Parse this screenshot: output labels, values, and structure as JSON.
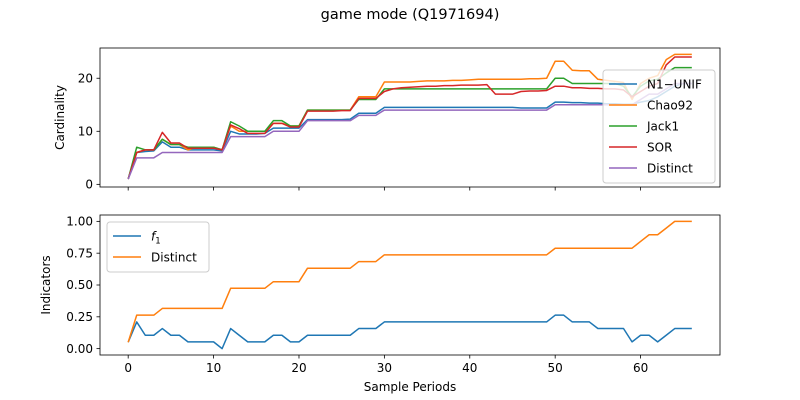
{
  "figure": {
    "title": "game mode (Q1971694)"
  },
  "colors": {
    "blue": "#1f77b4",
    "orange": "#ff7f0e",
    "green": "#2ca02c",
    "red": "#d62728",
    "purple": "#9467bd"
  },
  "chart_data": [
    {
      "type": "line",
      "title": "game mode (Q1971694)",
      "xlabel": "",
      "ylabel": "Cardinality",
      "xlim": [
        -3.3,
        69.3
      ],
      "ylim": [
        -0.5,
        25.7
      ],
      "xticks": [
        0,
        10,
        20,
        30,
        40,
        50,
        60
      ],
      "xtick_labels_visible": false,
      "yticks": [
        0,
        10,
        20
      ],
      "ytick_labels": [
        "0",
        "10",
        "20"
      ],
      "legend": "right",
      "grid": false,
      "x": [
        0,
        1,
        2,
        3,
        4,
        5,
        6,
        7,
        8,
        9,
        10,
        11,
        12,
        13,
        14,
        15,
        16,
        17,
        18,
        19,
        20,
        21,
        22,
        23,
        24,
        25,
        26,
        27,
        28,
        29,
        30,
        31,
        32,
        33,
        34,
        35,
        36,
        37,
        38,
        39,
        40,
        41,
        42,
        43,
        44,
        45,
        46,
        47,
        48,
        49,
        50,
        51,
        52,
        53,
        54,
        55,
        56,
        57,
        58,
        59,
        60,
        61,
        62,
        63,
        64,
        65,
        66
      ],
      "series": [
        {
          "name": "N1−UNIF",
          "color": "#1f77b4",
          "values": [
            1.0,
            6.0,
            6.2,
            6.3,
            8.0,
            7.0,
            7.0,
            6.5,
            6.5,
            6.5,
            6.5,
            6.3,
            10.0,
            9.5,
            9.5,
            9.5,
            9.6,
            10.6,
            10.6,
            10.6,
            10.6,
            12.2,
            12.2,
            12.2,
            12.2,
            12.2,
            12.3,
            13.4,
            13.4,
            13.4,
            14.5,
            14.5,
            14.5,
            14.5,
            14.5,
            14.5,
            14.5,
            14.5,
            14.5,
            14.5,
            14.5,
            14.5,
            14.5,
            14.5,
            14.5,
            14.5,
            14.4,
            14.4,
            14.4,
            14.4,
            15.5,
            15.5,
            15.4,
            15.4,
            15.3,
            15.3,
            15.2,
            15.2,
            15.1,
            15.1,
            15.5,
            15.8,
            16.5,
            17.5,
            18.5,
            19.0,
            19.0
          ]
        },
        {
          "name": "Chao92",
          "color": "#ff7f0e",
          "values": [
            1.0,
            6.0,
            6.5,
            6.5,
            8.5,
            7.5,
            7.5,
            6.5,
            7.0,
            7.0,
            7.0,
            6.5,
            11.0,
            10.0,
            10.0,
            10.0,
            10.0,
            11.5,
            11.5,
            11.0,
            11.0,
            14.0,
            14.0,
            14.0,
            14.0,
            14.0,
            14.0,
            16.5,
            16.5,
            16.5,
            19.3,
            19.3,
            19.3,
            19.3,
            19.4,
            19.5,
            19.5,
            19.5,
            19.6,
            19.6,
            19.7,
            19.8,
            19.8,
            19.8,
            19.8,
            19.8,
            19.8,
            19.9,
            19.9,
            20.0,
            23.2,
            23.2,
            21.5,
            21.4,
            21.4,
            19.8,
            19.6,
            19.4,
            19.2,
            16.0,
            19.0,
            20.0,
            20.5,
            23.5,
            24.5,
            24.5,
            24.5
          ]
        },
        {
          "name": "Jack1",
          "color": "#2ca02c",
          "values": [
            1.0,
            7.0,
            6.5,
            6.5,
            8.5,
            7.5,
            7.5,
            7.0,
            7.0,
            7.0,
            7.0,
            6.5,
            11.8,
            11.0,
            10.0,
            10.0,
            10.0,
            12.0,
            12.0,
            11.0,
            11.0,
            14.0,
            14.0,
            14.0,
            14.0,
            14.0,
            14.0,
            16.0,
            16.0,
            16.0,
            18.0,
            18.0,
            18.0,
            18.0,
            18.0,
            18.0,
            18.0,
            18.0,
            18.0,
            18.0,
            18.0,
            18.0,
            18.0,
            18.0,
            18.0,
            18.0,
            18.0,
            18.0,
            18.0,
            18.0,
            20.0,
            20.0,
            19.0,
            19.0,
            19.0,
            19.0,
            19.0,
            19.0,
            18.5,
            16.5,
            18.5,
            19.5,
            19.8,
            21.0,
            22.0,
            22.0,
            22.0
          ]
        },
        {
          "name": "SOR",
          "color": "#d62728",
          "values": [
            1.0,
            6.0,
            6.5,
            6.5,
            9.8,
            7.8,
            7.8,
            6.8,
            6.8,
            6.8,
            6.8,
            6.5,
            11.2,
            10.5,
            9.6,
            9.6,
            9.6,
            11.5,
            11.5,
            10.8,
            10.8,
            13.8,
            13.8,
            13.8,
            13.8,
            13.9,
            13.9,
            16.2,
            16.2,
            16.2,
            17.5,
            18.0,
            18.2,
            18.3,
            18.4,
            18.5,
            18.5,
            18.6,
            18.6,
            18.7,
            18.7,
            18.7,
            18.8,
            17.0,
            17.0,
            17.0,
            17.5,
            17.6,
            17.6,
            17.7,
            18.5,
            18.5,
            18.2,
            18.2,
            18.1,
            18.1,
            18.0,
            18.0,
            17.8,
            16.5,
            17.5,
            18.5,
            19.0,
            22.5,
            24.0,
            24.0,
            24.0
          ]
        },
        {
          "name": "Distinct",
          "color": "#9467bd",
          "values": [
            1.0,
            5.0,
            5.0,
            5.0,
            6.0,
            6.0,
            6.0,
            6.0,
            6.0,
            6.0,
            6.0,
            6.0,
            9.0,
            9.0,
            9.0,
            9.0,
            9.0,
            10.0,
            10.0,
            10.0,
            10.0,
            12.0,
            12.0,
            12.0,
            12.0,
            12.0,
            12.0,
            13.0,
            13.0,
            13.0,
            14.0,
            14.0,
            14.0,
            14.0,
            14.0,
            14.0,
            14.0,
            14.0,
            14.0,
            14.0,
            14.0,
            14.0,
            14.0,
            14.0,
            14.0,
            14.0,
            14.0,
            14.0,
            14.0,
            14.0,
            15.0,
            15.0,
            15.0,
            15.0,
            15.0,
            15.0,
            15.0,
            15.0,
            15.0,
            15.0,
            16.0,
            17.0,
            17.0,
            18.0,
            19.0,
            19.0,
            19.0
          ]
        }
      ]
    },
    {
      "type": "line",
      "title": "",
      "xlabel": "Sample Periods",
      "ylabel": "Indicators",
      "xlim": [
        -3.3,
        69.3
      ],
      "ylim": [
        -0.05,
        1.05
      ],
      "xticks": [
        0,
        10,
        20,
        30,
        40,
        50,
        60
      ],
      "xtick_labels": [
        "0",
        "10",
        "20",
        "30",
        "40",
        "50",
        "60"
      ],
      "yticks": [
        0,
        0.25,
        0.5,
        0.75,
        1.0
      ],
      "ytick_labels": [
        "0.00",
        "0.25",
        "0.50",
        "0.75",
        "1.00"
      ],
      "legend": "top-left",
      "grid": false,
      "x": [
        0,
        1,
        2,
        3,
        4,
        5,
        6,
        7,
        8,
        9,
        10,
        11,
        12,
        13,
        14,
        15,
        16,
        17,
        18,
        19,
        20,
        21,
        22,
        23,
        24,
        25,
        26,
        27,
        28,
        29,
        30,
        31,
        32,
        33,
        34,
        35,
        36,
        37,
        38,
        39,
        40,
        41,
        42,
        43,
        44,
        45,
        46,
        47,
        48,
        49,
        50,
        51,
        52,
        53,
        54,
        55,
        56,
        57,
        58,
        59,
        60,
        61,
        62,
        63,
        64,
        65,
        66
      ],
      "series": [
        {
          "name": "f1",
          "color": "#1f77b4",
          "values": [
            0.05,
            0.21,
            0.105,
            0.105,
            0.158,
            0.105,
            0.105,
            0.053,
            0.053,
            0.053,
            0.053,
            0.0,
            0.158,
            0.105,
            0.053,
            0.053,
            0.053,
            0.105,
            0.105,
            0.053,
            0.053,
            0.105,
            0.105,
            0.105,
            0.105,
            0.105,
            0.105,
            0.158,
            0.158,
            0.158,
            0.21,
            0.21,
            0.21,
            0.21,
            0.21,
            0.21,
            0.21,
            0.21,
            0.21,
            0.21,
            0.21,
            0.21,
            0.21,
            0.21,
            0.21,
            0.21,
            0.21,
            0.21,
            0.21,
            0.21,
            0.263,
            0.263,
            0.21,
            0.21,
            0.21,
            0.158,
            0.158,
            0.158,
            0.158,
            0.053,
            0.105,
            0.105,
            0.053,
            0.105,
            0.158,
            0.158,
            0.158
          ]
        },
        {
          "name": "Distinct",
          "color": "#ff7f0e",
          "values": [
            0.05,
            0.263,
            0.263,
            0.263,
            0.316,
            0.316,
            0.316,
            0.316,
            0.316,
            0.316,
            0.316,
            0.316,
            0.474,
            0.474,
            0.474,
            0.474,
            0.474,
            0.526,
            0.526,
            0.526,
            0.526,
            0.632,
            0.632,
            0.632,
            0.632,
            0.632,
            0.632,
            0.684,
            0.684,
            0.684,
            0.737,
            0.737,
            0.737,
            0.737,
            0.737,
            0.737,
            0.737,
            0.737,
            0.737,
            0.737,
            0.737,
            0.737,
            0.737,
            0.737,
            0.737,
            0.737,
            0.737,
            0.737,
            0.737,
            0.737,
            0.789,
            0.789,
            0.789,
            0.789,
            0.789,
            0.789,
            0.789,
            0.789,
            0.789,
            0.789,
            0.842,
            0.895,
            0.895,
            0.947,
            1.0,
            1.0,
            1.0
          ]
        }
      ]
    }
  ]
}
